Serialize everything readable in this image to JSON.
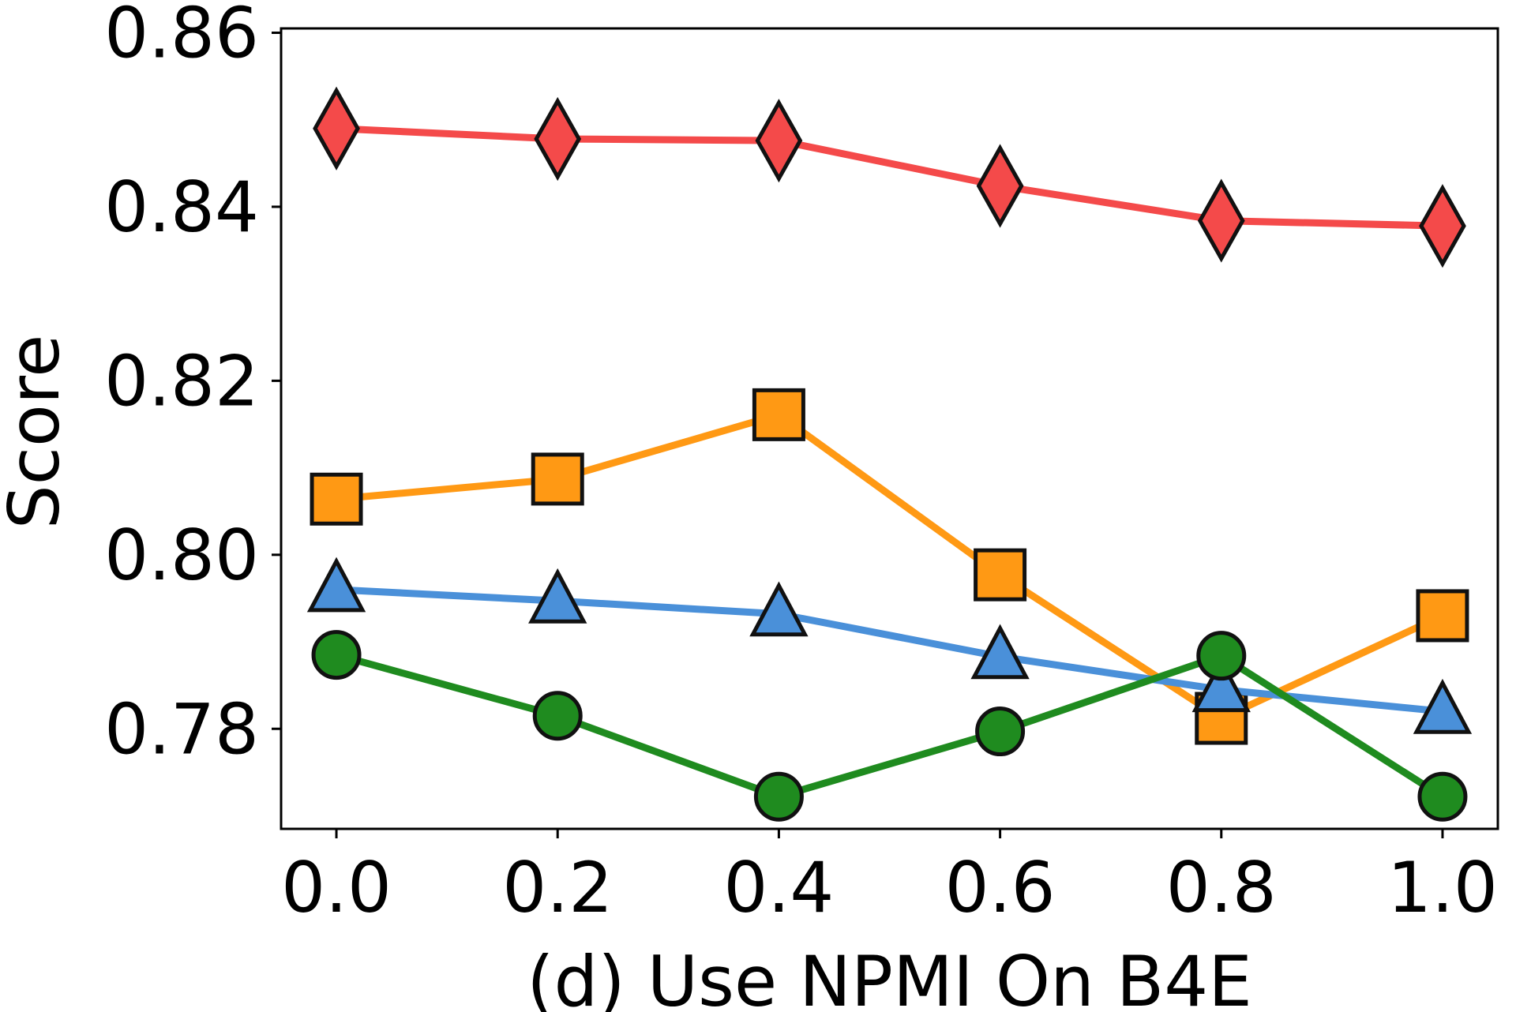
{
  "chart_data": {
    "type": "line",
    "xlabel": "(d) Use NPMI On B4E",
    "ylabel": "Score",
    "x": [
      0.0,
      0.2,
      0.4,
      0.6,
      0.8,
      1.0
    ],
    "x_tick_labels": [
      "0.0",
      "0.2",
      "0.4",
      "0.6",
      "0.8",
      "1.0"
    ],
    "y_ticks": [
      0.78,
      0.8,
      0.82,
      0.84,
      0.86
    ],
    "y_tick_labels": [
      "0.78",
      "0.80",
      "0.82",
      "0.84",
      "0.86"
    ],
    "xlim": [
      -0.05,
      1.05
    ],
    "ylim": [
      0.7685,
      0.8605
    ],
    "grid": false,
    "legend": "none",
    "series": [
      {
        "marker": "diamond",
        "color": "#f44a4a",
        "values": [
          0.849,
          0.8478,
          0.8476,
          0.8424,
          0.8384,
          0.8378
        ]
      },
      {
        "marker": "square",
        "color": "#ff9914",
        "values": [
          0.8064,
          0.8087,
          0.8161,
          0.7977,
          0.7812,
          0.793
        ]
      },
      {
        "marker": "triangle",
        "color": "#4a90d9",
        "values": [
          0.796,
          0.7947,
          0.7932,
          0.7883,
          0.7845,
          0.782
        ]
      },
      {
        "marker": "circle",
        "color": "#1f8b1f",
        "values": [
          0.7885,
          0.7815,
          0.7722,
          0.7797,
          0.7884,
          0.7722
        ]
      }
    ]
  }
}
